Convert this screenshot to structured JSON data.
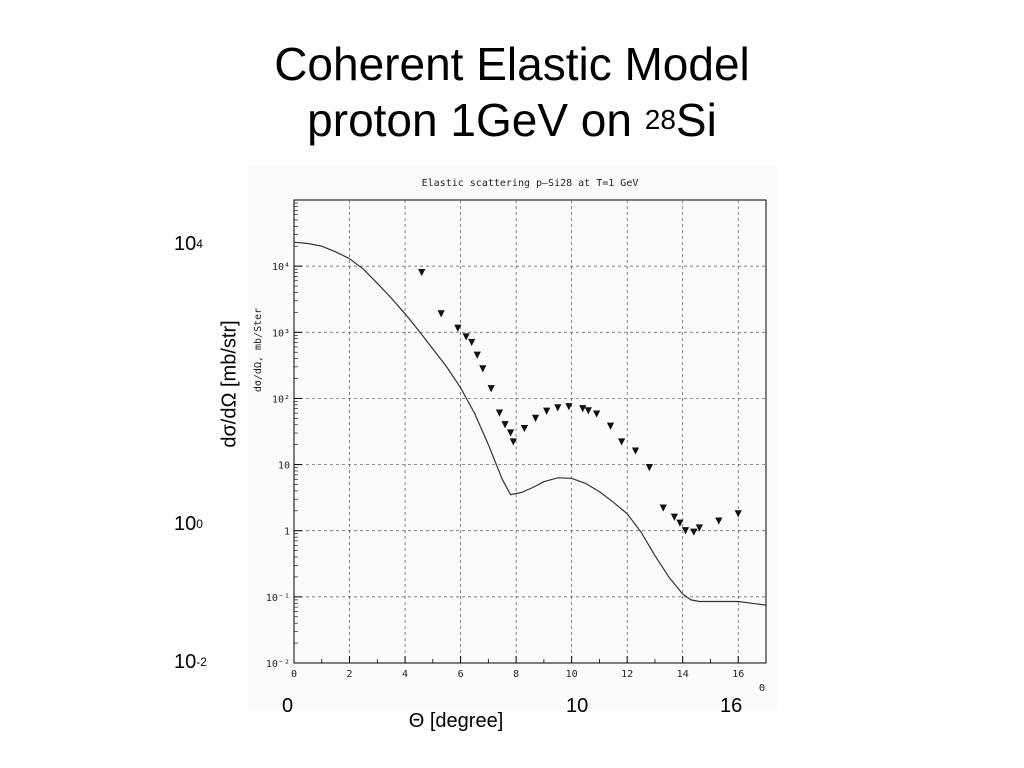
{
  "slide": {
    "title_line1": "Coherent Elastic Model",
    "title_line2_prefix": "proton 1GeV on ",
    "title_line2_sup": "28",
    "title_line2_suffix": "Si"
  },
  "outer_labels": {
    "y_axis_label": "dσ/dΩ [mb/str]",
    "x_axis_label": "Θ [degree]",
    "y_ticks": [
      {
        "base": "10",
        "exp": "4"
      },
      {
        "base": "10",
        "exp": "0"
      },
      {
        "base": "10",
        "exp": "-2"
      }
    ],
    "x_ticks": [
      "0",
      "10",
      "16"
    ]
  },
  "chart_data": {
    "type": "line",
    "title": "Elastic scattering p–Si28 at T=1 GeV",
    "ylabel": "dσ/dΩ, mb/Ster",
    "xlabel": "Θ",
    "y_scale": "log",
    "xlim": [
      0,
      17
    ],
    "ylim": [
      0.01,
      100000
    ],
    "x_ticks": [
      "0",
      "2",
      "4",
      "6",
      "8",
      "10",
      "12",
      "14",
      "16"
    ],
    "y_ticks": [
      "10⁻²",
      "10⁻¹",
      "1",
      "10",
      "10²",
      "10³",
      "10⁴"
    ],
    "grid": true,
    "series": [
      {
        "style": "line",
        "x": [
          0,
          0.5,
          1,
          1.5,
          2,
          2.5,
          3,
          3.5,
          4,
          4.5,
          5,
          5.5,
          6,
          6.5,
          7,
          7.5,
          7.8,
          8.2,
          8.6,
          9,
          9.5,
          10,
          10.5,
          11,
          11.5,
          12,
          12.5,
          13,
          13.5,
          14,
          14.3,
          14.6,
          15,
          15.5,
          16,
          16.5,
          17
        ],
        "y": [
          23000,
          22000,
          20000,
          16500,
          13000,
          9000,
          5500,
          3300,
          1900,
          1050,
          560,
          300,
          145,
          60,
          20,
          6,
          3.5,
          3.8,
          4.5,
          5.5,
          6.3,
          6.2,
          5.2,
          3.9,
          2.7,
          1.8,
          0.95,
          0.42,
          0.2,
          0.11,
          0.09,
          0.085,
          0.085,
          0.085,
          0.085,
          0.08,
          0.075
        ]
      },
      {
        "style": "scatter",
        "marker": "down-triangle",
        "x": [
          4.6,
          5.3,
          5.9,
          6.2,
          6.4,
          6.6,
          6.8,
          7.1,
          7.4,
          7.6,
          7.8,
          7.9,
          8.3,
          8.7,
          9.1,
          9.5,
          9.9,
          10.4,
          10.6,
          10.9,
          11.4,
          11.8,
          12.3,
          12.8,
          13.3,
          13.7,
          13.9,
          14.1,
          14.4,
          14.6,
          15.3,
          16
        ],
        "y": [
          8000,
          1900,
          1150,
          850,
          700,
          450,
          280,
          140,
          60,
          40,
          30,
          22,
          35,
          50,
          64,
          72,
          75,
          70,
          65,
          58,
          38,
          22,
          16,
          9,
          2.2,
          1.6,
          1.3,
          1.0,
          0.95,
          1.1,
          1.4,
          1.8
        ]
      }
    ]
  }
}
